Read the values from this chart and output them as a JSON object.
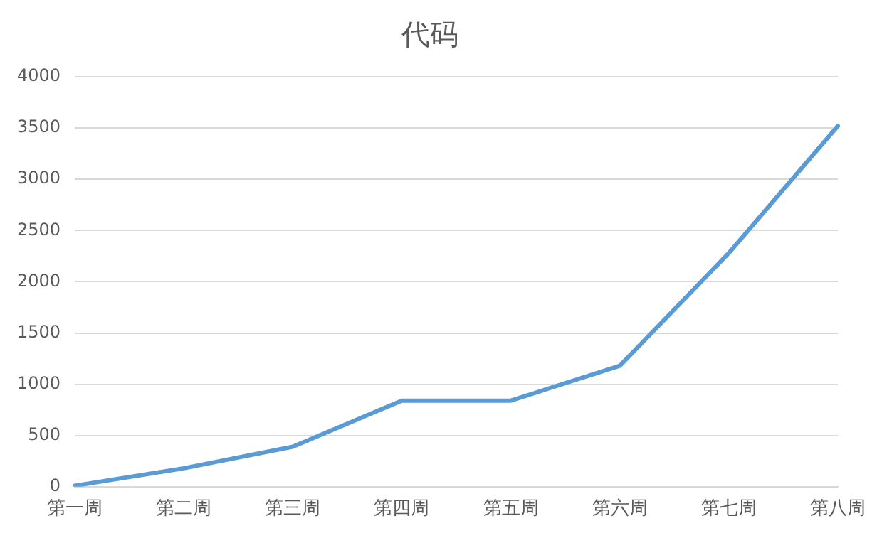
{
  "chart_data": {
    "type": "line",
    "title": "代码",
    "categories": [
      "第一周",
      "第二周",
      "第三周",
      "第四周",
      "第五周",
      "第六周",
      "第七周",
      "第八周"
    ],
    "series": [
      {
        "color": "#5b9bd5",
        "values": [
          10,
          180,
          390,
          840,
          840,
          1180,
          2280,
          3520
        ]
      }
    ],
    "ylim": [
      0,
      4000
    ],
    "yticks": [
      0,
      500,
      1000,
      1500,
      2000,
      2500,
      3000,
      3500,
      4000
    ],
    "grid": "y",
    "legend": false,
    "marker": "none",
    "line_style": "solid"
  }
}
